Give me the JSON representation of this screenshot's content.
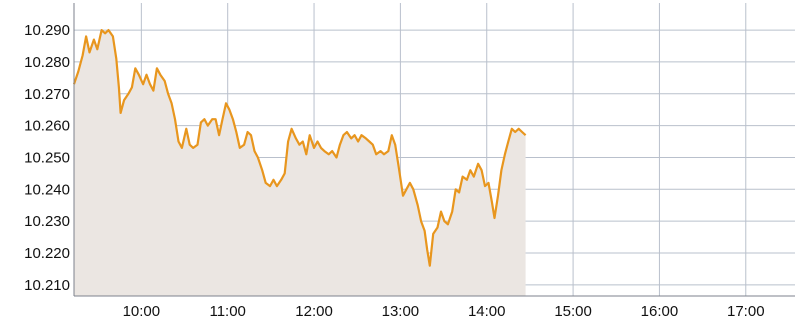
{
  "chart_data": {
    "type": "area",
    "title": "",
    "xlabel": "",
    "ylabel": "",
    "x_unit": "time of day (hours)",
    "xlim": [
      9.22,
      17.57
    ],
    "ylim": [
      10.2065,
      10.2985
    ],
    "y_ticks": [
      10.21,
      10.22,
      10.23,
      10.24,
      10.25,
      10.26,
      10.27,
      10.28,
      10.29
    ],
    "y_tick_labels": [
      "10.210",
      "10.220",
      "10.230",
      "10.240",
      "10.250",
      "10.260",
      "10.270",
      "10.280",
      "10.290"
    ],
    "x_ticks": [
      10,
      11,
      12,
      13,
      14,
      15,
      16,
      17
    ],
    "x_tick_labels": [
      "10:00",
      "11:00",
      "12:00",
      "13:00",
      "14:00",
      "15:00",
      "16:00",
      "17:00"
    ],
    "grid": true,
    "line_color": "#e8961e",
    "fill_color": "#ebe6e2",
    "series": [
      {
        "points": [
          [
            9.22,
            10.273
          ],
          [
            9.27,
            10.277
          ],
          [
            9.32,
            10.282
          ],
          [
            9.36,
            10.288
          ],
          [
            9.4,
            10.283
          ],
          [
            9.45,
            10.287
          ],
          [
            9.49,
            10.284
          ],
          [
            9.54,
            10.29
          ],
          [
            9.58,
            10.289
          ],
          [
            9.62,
            10.29
          ],
          [
            9.67,
            10.288
          ],
          [
            9.71,
            10.281
          ],
          [
            9.74,
            10.272
          ],
          [
            9.76,
            10.264
          ],
          [
            9.8,
            10.268
          ],
          [
            9.85,
            10.27
          ],
          [
            9.89,
            10.272
          ],
          [
            9.93,
            10.278
          ],
          [
            9.97,
            10.276
          ],
          [
            10.02,
            10.273
          ],
          [
            10.06,
            10.276
          ],
          [
            10.1,
            10.273
          ],
          [
            10.14,
            10.271
          ],
          [
            10.18,
            10.278
          ],
          [
            10.22,
            10.276
          ],
          [
            10.27,
            10.274
          ],
          [
            10.31,
            10.27
          ],
          [
            10.35,
            10.267
          ],
          [
            10.39,
            10.262
          ],
          [
            10.43,
            10.255
          ],
          [
            10.47,
            10.253
          ],
          [
            10.52,
            10.259
          ],
          [
            10.56,
            10.254
          ],
          [
            10.6,
            10.253
          ],
          [
            10.65,
            10.254
          ],
          [
            10.69,
            10.261
          ],
          [
            10.73,
            10.262
          ],
          [
            10.77,
            10.26
          ],
          [
            10.82,
            10.262
          ],
          [
            10.86,
            10.262
          ],
          [
            10.9,
            10.257
          ],
          [
            10.94,
            10.262
          ],
          [
            10.98,
            10.267
          ],
          [
            11.02,
            10.265
          ],
          [
            11.06,
            10.262
          ],
          [
            11.1,
            10.258
          ],
          [
            11.14,
            10.253
          ],
          [
            11.19,
            10.254
          ],
          [
            11.23,
            10.258
          ],
          [
            11.27,
            10.257
          ],
          [
            11.31,
            10.252
          ],
          [
            11.35,
            10.25
          ],
          [
            11.4,
            10.246
          ],
          [
            11.44,
            10.242
          ],
          [
            11.49,
            10.241
          ],
          [
            11.53,
            10.243
          ],
          [
            11.57,
            10.241
          ],
          [
            11.62,
            10.243
          ],
          [
            11.66,
            10.245
          ],
          [
            11.7,
            10.255
          ],
          [
            11.74,
            10.259
          ],
          [
            11.79,
            10.256
          ],
          [
            11.83,
            10.254
          ],
          [
            11.87,
            10.255
          ],
          [
            11.91,
            10.251
          ],
          [
            11.95,
            10.257
          ],
          [
            12.0,
            10.253
          ],
          [
            12.04,
            10.255
          ],
          [
            12.08,
            10.253
          ],
          [
            12.12,
            10.252
          ],
          [
            12.17,
            10.251
          ],
          [
            12.21,
            10.252
          ],
          [
            12.26,
            10.25
          ],
          [
            12.3,
            10.254
          ],
          [
            12.34,
            10.257
          ],
          [
            12.38,
            10.258
          ],
          [
            12.43,
            10.256
          ],
          [
            12.47,
            10.257
          ],
          [
            12.51,
            10.255
          ],
          [
            12.55,
            10.257
          ],
          [
            12.6,
            10.256
          ],
          [
            12.64,
            10.255
          ],
          [
            12.68,
            10.254
          ],
          [
            12.72,
            10.251
          ],
          [
            12.77,
            10.252
          ],
          [
            12.81,
            10.251
          ],
          [
            12.86,
            10.252
          ],
          [
            12.9,
            10.257
          ],
          [
            12.94,
            10.254
          ],
          [
            12.98,
            10.247
          ],
          [
            13.03,
            10.238
          ],
          [
            13.07,
            10.24
          ],
          [
            13.11,
            10.242
          ],
          [
            13.15,
            10.24
          ],
          [
            13.2,
            10.235
          ],
          [
            13.24,
            10.23
          ],
          [
            13.28,
            10.227
          ],
          [
            13.31,
            10.221
          ],
          [
            13.34,
            10.216
          ],
          [
            13.38,
            10.226
          ],
          [
            13.43,
            10.228
          ],
          [
            13.47,
            10.233
          ],
          [
            13.51,
            10.23
          ],
          [
            13.55,
            10.229
          ],
          [
            13.6,
            10.233
          ],
          [
            13.64,
            10.24
          ],
          [
            13.68,
            10.239
          ],
          [
            13.72,
            10.244
          ],
          [
            13.77,
            10.243
          ],
          [
            13.81,
            10.246
          ],
          [
            13.85,
            10.244
          ],
          [
            13.9,
            10.248
          ],
          [
            13.94,
            10.246
          ],
          [
            13.98,
            10.241
          ],
          [
            14.02,
            10.242
          ],
          [
            14.06,
            10.236
          ],
          [
            14.09,
            10.231
          ],
          [
            14.13,
            10.238
          ],
          [
            14.17,
            10.246
          ],
          [
            14.21,
            10.251
          ],
          [
            14.25,
            10.255
          ],
          [
            14.29,
            10.259
          ],
          [
            14.33,
            10.258
          ],
          [
            14.37,
            10.259
          ],
          [
            14.41,
            10.258
          ],
          [
            14.45,
            10.257
          ]
        ]
      }
    ]
  }
}
